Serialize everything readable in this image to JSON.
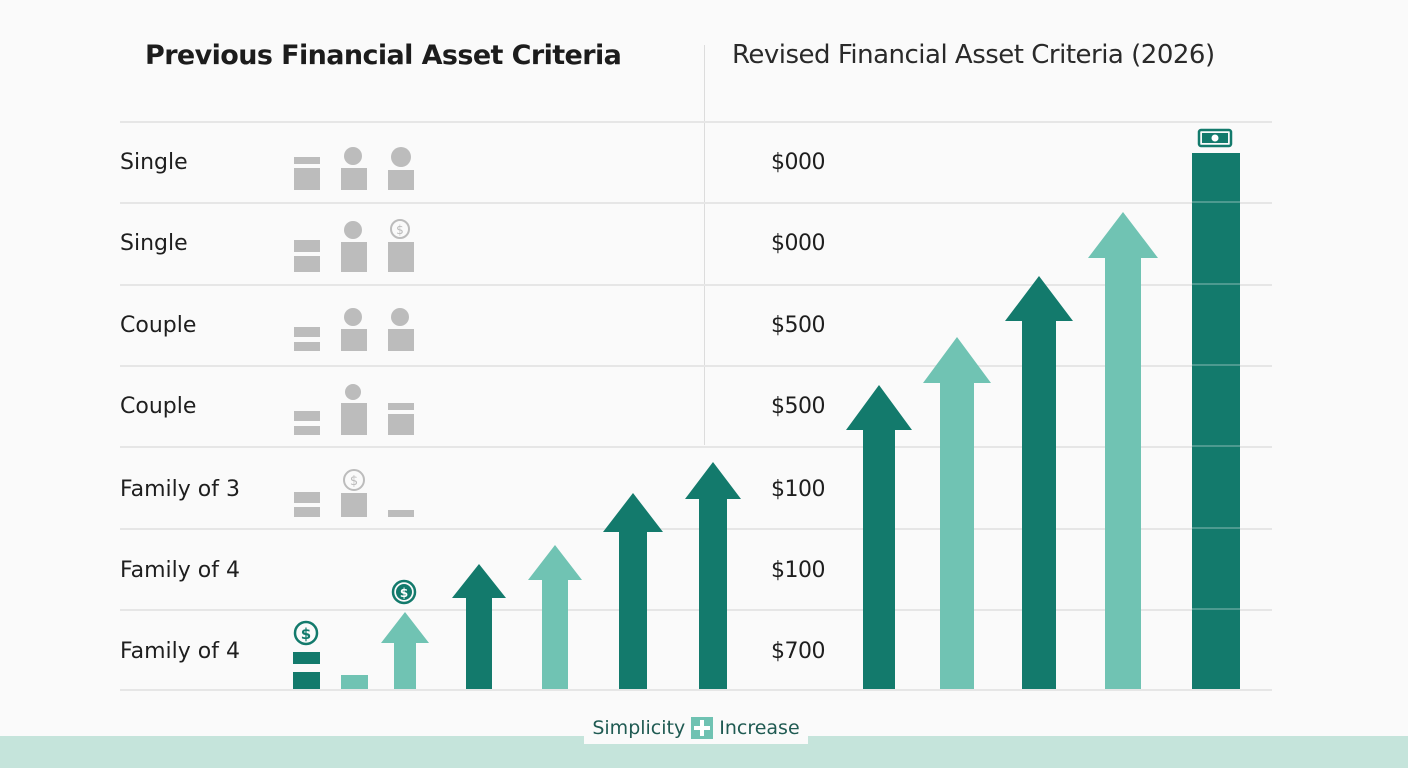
{
  "header": {
    "left_title": "Previous Financial Asset Criteria",
    "right_title": "Revised Financial Asset Criteria (2026)"
  },
  "rows": [
    {
      "label": "Single",
      "value": "$000"
    },
    {
      "label": "Single",
      "value": "$000"
    },
    {
      "label": "Couple",
      "value": "$500"
    },
    {
      "label": "Couple",
      "value": "$500"
    },
    {
      "label": "Family of 3",
      "value": "$100"
    },
    {
      "label": "Family of 4",
      "value": "$100"
    },
    {
      "label": "Family of 4",
      "value": "$700"
    }
  ],
  "legend": {
    "left_label": "Simplicity",
    "right_label": "Increase"
  },
  "icons": {
    "person": "person-icon",
    "document": "document-icon",
    "coin": "dollar-coin-icon",
    "arrow": "up-arrow-icon",
    "banknote": "banknote-icon"
  },
  "colors": {
    "dark_teal": "#137a6c",
    "light_teal": "#70c3b3",
    "gray_icon": "#bcbcbc",
    "band": "#c5e4db"
  }
}
